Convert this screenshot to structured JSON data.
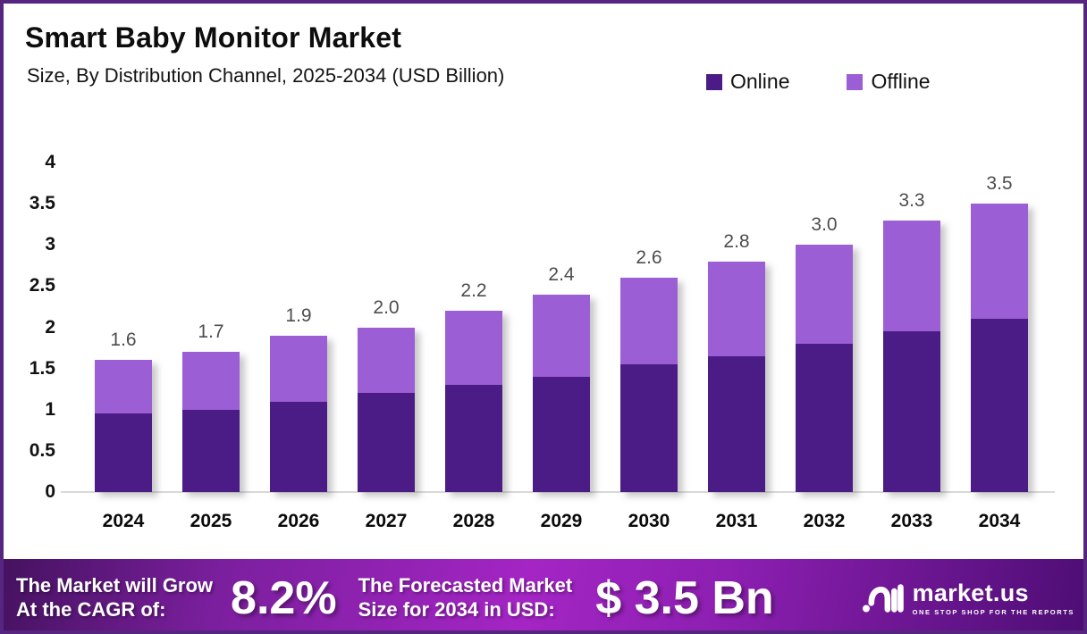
{
  "header": {
    "title": "Smart Baby Monitor Market",
    "subtitle": "Size, By Distribution Channel, 2025-2034 (USD Billion)"
  },
  "colors": {
    "online": "#4b1c86",
    "offline": "#9b5ed5",
    "frame_border": "#56257f",
    "axis_line": "#d9d9d9",
    "value_label": "#4d4d4d"
  },
  "legend": {
    "items": [
      {
        "label": "Online",
        "color": "#4b1c86"
      },
      {
        "label": "Offline",
        "color": "#9b5ed5"
      }
    ]
  },
  "chart_data": {
    "type": "bar",
    "stacked": true,
    "title": "Smart Baby Monitor Market Size, By Distribution Channel, 2025-2034 (USD Billion)",
    "categories": [
      "2024",
      "2025",
      "2026",
      "2027",
      "2028",
      "2029",
      "2030",
      "2031",
      "2032",
      "2033",
      "2034"
    ],
    "series": [
      {
        "name": "Online",
        "color": "#4b1c86",
        "values": [
          0.95,
          1.0,
          1.1,
          1.2,
          1.3,
          1.4,
          1.55,
          1.65,
          1.8,
          1.95,
          2.1
        ]
      },
      {
        "name": "Offline",
        "color": "#9b5ed5",
        "values": [
          0.65,
          0.7,
          0.8,
          0.8,
          0.9,
          1.0,
          1.05,
          1.15,
          1.2,
          1.35,
          1.4
        ]
      }
    ],
    "total_labels": [
      "1.6",
      "1.7",
      "1.9",
      "2.0",
      "2.2",
      "2.4",
      "2.6",
      "2.8",
      "3.0",
      "3.3",
      "3.5"
    ],
    "xlabel": "",
    "ylabel": "",
    "ylim": [
      0,
      4
    ],
    "yticks": [
      0,
      0.5,
      1,
      1.5,
      2,
      2.5,
      3,
      3.5,
      4
    ],
    "grid": false,
    "legend_position": "top-right"
  },
  "banner": {
    "cagr_line1": "The Market will Grow",
    "cagr_line2": "At the CAGR of:",
    "cagr_value": "8.2%",
    "forecast_line1": "The Forecasted Market",
    "forecast_line2": "Size for 2034 in USD:",
    "forecast_value": "$ 3.5 Bn",
    "logo_name": "market.us",
    "logo_tagline": "ONE STOP SHOP FOR THE REPORTS"
  }
}
